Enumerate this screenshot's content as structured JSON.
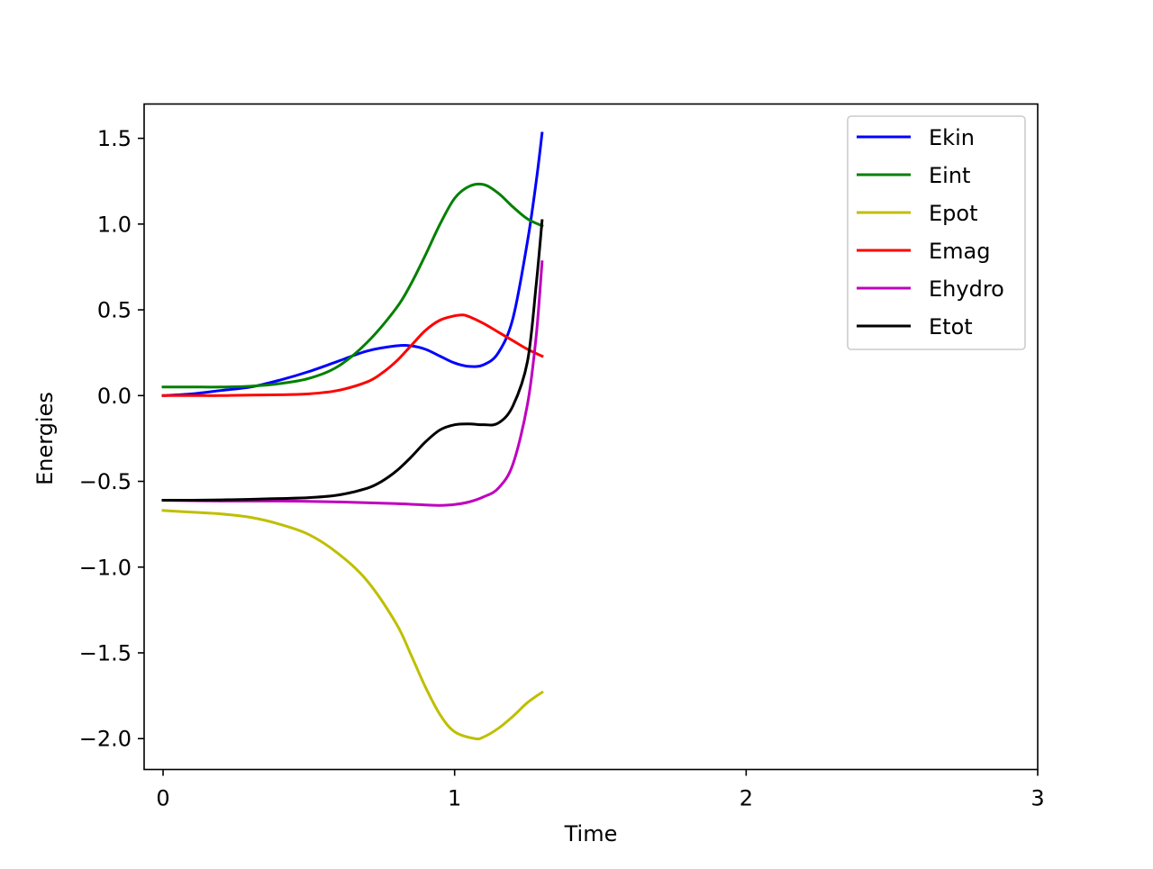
{
  "chart_data": {
    "type": "line",
    "title": "",
    "xlabel": "Time",
    "ylabel": "Energies",
    "xlim": [
      -0.065,
      3.0
    ],
    "ylim": [
      -2.18,
      1.7
    ],
    "xticks": [
      0,
      1,
      2,
      3
    ],
    "xtick_labels": [
      "0",
      "1",
      "2",
      "3"
    ],
    "yticks": [
      1.5,
      1.0,
      0.5,
      0.0,
      -0.5,
      -1.0,
      -1.5,
      -2.0
    ],
    "ytick_labels": [
      "1.5",
      "1.0",
      "0.5",
      "0.0",
      "−0.5",
      "−1.0",
      "−1.5",
      "−2.0"
    ],
    "grid": false,
    "legend_position": "top-right",
    "series": [
      {
        "name": "Ekin",
        "color": "#0000ff",
        "x": [
          0,
          0.1,
          0.2,
          0.3,
          0.4,
          0.5,
          0.6,
          0.7,
          0.8,
          0.85,
          0.9,
          0.95,
          1.0,
          1.05,
          1.1,
          1.15,
          1.2,
          1.25,
          1.28,
          1.3
        ],
        "y": [
          0.0,
          0.01,
          0.03,
          0.05,
          0.09,
          0.14,
          0.2,
          0.26,
          0.29,
          0.29,
          0.27,
          0.23,
          0.19,
          0.17,
          0.18,
          0.25,
          0.45,
          0.9,
          1.25,
          1.53
        ]
      },
      {
        "name": "Eint",
        "color": "#008000",
        "x": [
          0,
          0.1,
          0.2,
          0.3,
          0.4,
          0.5,
          0.6,
          0.7,
          0.8,
          0.85,
          0.9,
          0.95,
          1.0,
          1.05,
          1.1,
          1.15,
          1.2,
          1.25,
          1.3
        ],
        "y": [
          0.05,
          0.05,
          0.05,
          0.055,
          0.07,
          0.1,
          0.17,
          0.31,
          0.51,
          0.65,
          0.82,
          1.0,
          1.15,
          1.22,
          1.23,
          1.18,
          1.1,
          1.03,
          0.99
        ]
      },
      {
        "name": "Epot",
        "color": "#bfbf00",
        "x": [
          0,
          0.1,
          0.2,
          0.3,
          0.4,
          0.5,
          0.6,
          0.7,
          0.8,
          0.85,
          0.9,
          0.95,
          1.0,
          1.07,
          1.1,
          1.15,
          1.2,
          1.25,
          1.3
        ],
        "y": [
          -0.67,
          -0.68,
          -0.69,
          -0.71,
          -0.75,
          -0.81,
          -0.92,
          -1.08,
          -1.33,
          -1.51,
          -1.7,
          -1.86,
          -1.96,
          -2.0,
          -1.99,
          -1.94,
          -1.87,
          -1.79,
          -1.73
        ]
      },
      {
        "name": "Emag",
        "color": "#ff0000",
        "x": [
          0,
          0.1,
          0.2,
          0.3,
          0.4,
          0.5,
          0.6,
          0.7,
          0.75,
          0.8,
          0.85,
          0.9,
          0.95,
          1.0,
          1.03,
          1.05,
          1.1,
          1.15,
          1.2,
          1.25,
          1.3
        ],
        "y": [
          0.0,
          0.0,
          0.0,
          0.003,
          0.005,
          0.01,
          0.03,
          0.08,
          0.13,
          0.2,
          0.29,
          0.38,
          0.44,
          0.465,
          0.47,
          0.46,
          0.42,
          0.37,
          0.32,
          0.27,
          0.23
        ]
      },
      {
        "name": "Ehydro",
        "color": "#bf00bf",
        "x": [
          0,
          0.2,
          0.4,
          0.6,
          0.8,
          0.9,
          0.95,
          1.0,
          1.05,
          1.1,
          1.15,
          1.2,
          1.25,
          1.28,
          1.3
        ],
        "y": [
          -0.61,
          -0.615,
          -0.615,
          -0.62,
          -0.63,
          -0.638,
          -0.64,
          -0.635,
          -0.62,
          -0.59,
          -0.54,
          -0.4,
          -0.05,
          0.35,
          0.78
        ]
      },
      {
        "name": "Etot",
        "color": "#000000",
        "x": [
          0,
          0.1,
          0.2,
          0.3,
          0.4,
          0.5,
          0.6,
          0.7,
          0.75,
          0.8,
          0.85,
          0.9,
          0.95,
          1.0,
          1.05,
          1.1,
          1.15,
          1.2,
          1.25,
          1.28,
          1.3
        ],
        "y": [
          -0.61,
          -0.61,
          -0.608,
          -0.605,
          -0.6,
          -0.595,
          -0.58,
          -0.54,
          -0.5,
          -0.44,
          -0.36,
          -0.27,
          -0.2,
          -0.17,
          -0.165,
          -0.17,
          -0.16,
          -0.06,
          0.2,
          0.65,
          1.02
        ]
      }
    ]
  }
}
